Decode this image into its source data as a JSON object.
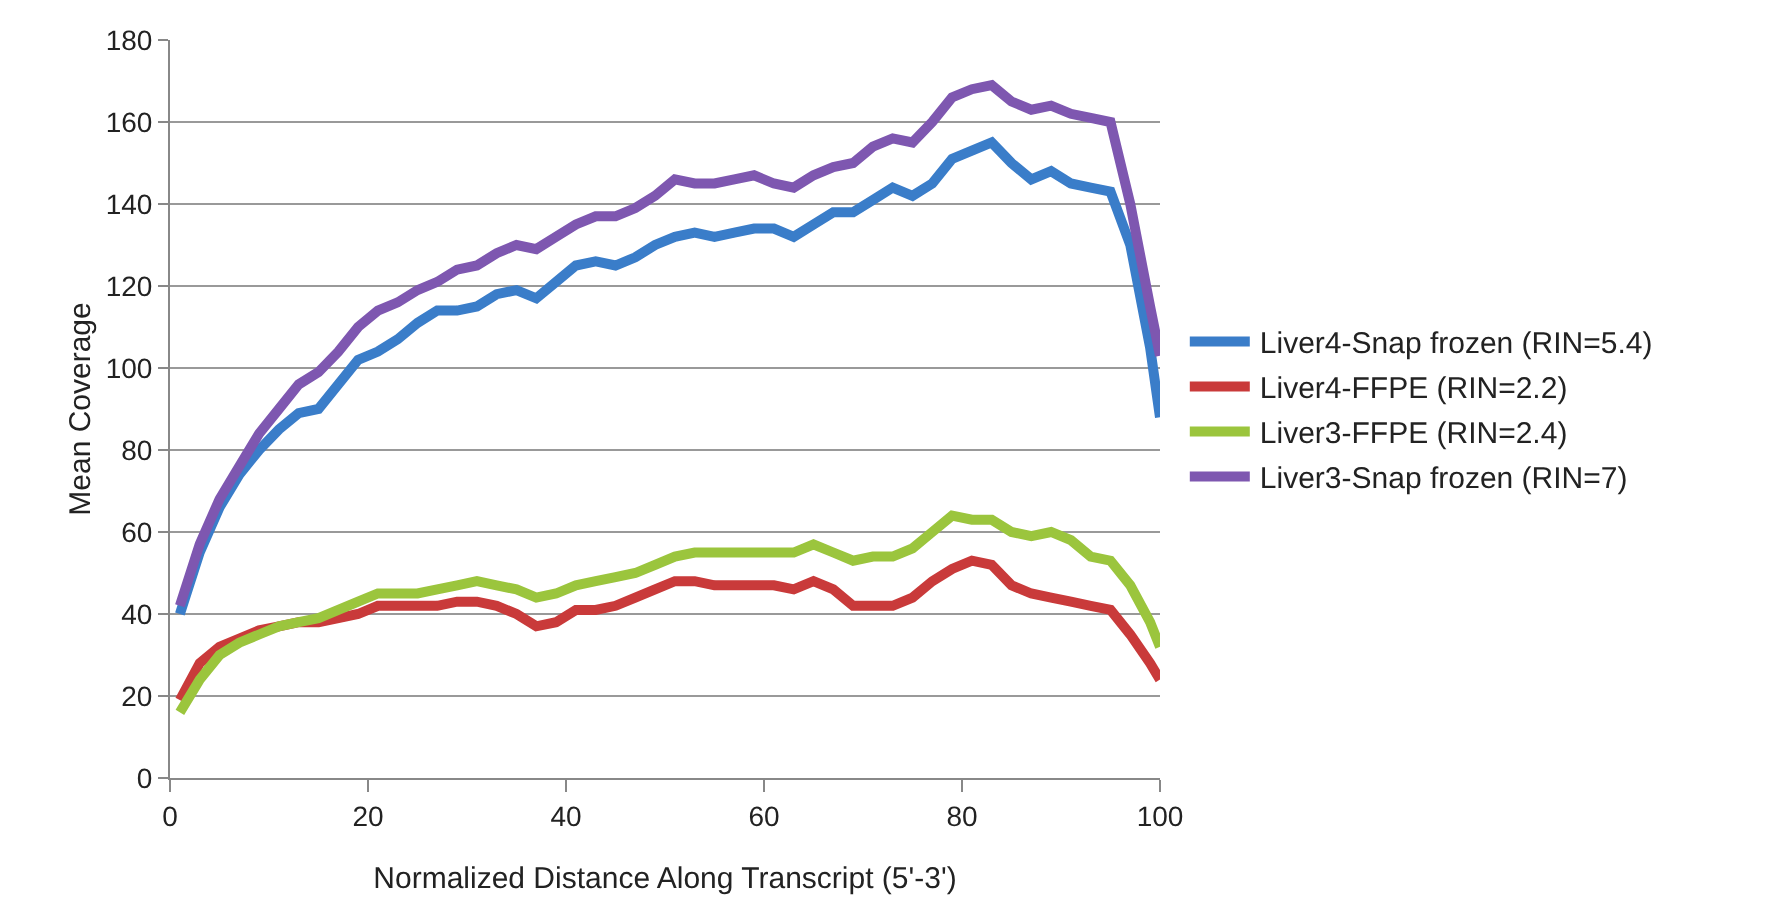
{
  "chart_data": {
    "type": "line",
    "xlabel": "Normalized Distance Along Transcript (5'-3')",
    "ylabel": "Mean Coverage",
    "x": [
      1,
      3,
      5,
      7,
      9,
      11,
      13,
      15,
      17,
      19,
      21,
      23,
      25,
      27,
      29,
      31,
      33,
      35,
      37,
      39,
      41,
      43,
      45,
      47,
      49,
      51,
      53,
      55,
      57,
      59,
      61,
      63,
      65,
      67,
      69,
      71,
      73,
      75,
      77,
      79,
      81,
      83,
      85,
      87,
      89,
      91,
      93,
      95,
      97,
      99,
      100
    ],
    "xlim": [
      0,
      100
    ],
    "xticks": [
      0,
      20,
      40,
      60,
      80,
      100
    ],
    "ylim": [
      0,
      180
    ],
    "yticks": [
      0,
      20,
      40,
      60,
      80,
      100,
      120,
      140,
      160,
      180
    ],
    "grid": "y",
    "legend": "right",
    "marker": "none",
    "line_style": "solid",
    "series": [
      {
        "name": "Liver4-Snap frozen (RIN=5.4)",
        "color": "#3a7dc9",
        "values": [
          40,
          55,
          66,
          74,
          80,
          85,
          89,
          90,
          96,
          102,
          104,
          107,
          111,
          114,
          114,
          115,
          118,
          119,
          117,
          121,
          125,
          126,
          125,
          127,
          130,
          132,
          133,
          132,
          133,
          134,
          134,
          132,
          135,
          138,
          138,
          141,
          144,
          142,
          145,
          151,
          153,
          155,
          150,
          146,
          148,
          145,
          144,
          143,
          130,
          105,
          88
        ]
      },
      {
        "name": "Liver4-FFPE (RIN=2.2)",
        "color": "#c93a3a",
        "values": [
          19,
          28,
          32,
          34,
          36,
          37,
          38,
          38,
          39,
          40,
          42,
          42,
          42,
          42,
          43,
          43,
          42,
          40,
          37,
          38,
          41,
          41,
          42,
          44,
          46,
          48,
          48,
          47,
          47,
          47,
          47,
          46,
          48,
          46,
          42,
          42,
          42,
          44,
          48,
          51,
          53,
          52,
          47,
          45,
          44,
          43,
          42,
          41,
          35,
          28,
          24
        ]
      },
      {
        "name": "Liver3-FFPE (RIN=2.4)",
        "color": "#9bc53d",
        "values": [
          16,
          24,
          30,
          33,
          35,
          37,
          38,
          39,
          41,
          43,
          45,
          45,
          45,
          46,
          47,
          48,
          47,
          46,
          44,
          45,
          47,
          48,
          49,
          50,
          52,
          54,
          55,
          55,
          55,
          55,
          55,
          55,
          57,
          55,
          53,
          54,
          54,
          56,
          60,
          64,
          63,
          63,
          60,
          59,
          60,
          58,
          54,
          53,
          47,
          38,
          32
        ]
      },
      {
        "name": "Liver3-Snap frozen (RIN=7)",
        "color": "#7e57b0",
        "values": [
          42,
          57,
          68,
          76,
          84,
          90,
          96,
          99,
          104,
          110,
          114,
          116,
          119,
          121,
          124,
          125,
          128,
          130,
          129,
          132,
          135,
          137,
          137,
          139,
          142,
          146,
          145,
          145,
          146,
          147,
          145,
          144,
          147,
          149,
          150,
          154,
          156,
          155,
          160,
          166,
          168,
          169,
          165,
          163,
          164,
          162,
          161,
          160,
          140,
          115,
          103
        ]
      }
    ]
  }
}
